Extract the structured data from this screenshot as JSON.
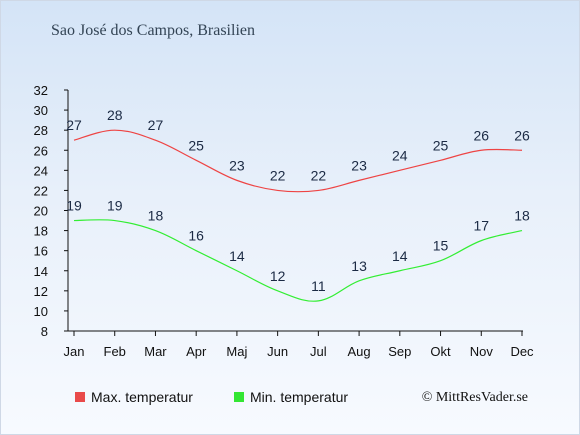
{
  "title": "Sao José dos Campos, Brasilien",
  "credit": "© MittResVader.se",
  "legend": {
    "max_label": "Max. temperatur",
    "min_label": "Min. temperatur"
  },
  "colors": {
    "max": "#ee4444",
    "min": "#33ee33",
    "max_swatch": "#e94a4a",
    "min_swatch": "#33e633"
  },
  "chart_data": {
    "type": "line",
    "categories": [
      "Jan",
      "Feb",
      "Mar",
      "Apr",
      "Maj",
      "Jun",
      "Jul",
      "Aug",
      "Sep",
      "Okt",
      "Nov",
      "Dec"
    ],
    "series": [
      {
        "name": "Max. temperatur",
        "values": [
          27,
          28,
          27,
          25,
          23,
          22,
          22,
          23,
          24,
          25,
          26,
          26
        ]
      },
      {
        "name": "Min. temperatur",
        "values": [
          19,
          19,
          18,
          16,
          14,
          12,
          11,
          13,
          14,
          15,
          17,
          18
        ]
      }
    ],
    "ylim": [
      8,
      32
    ],
    "yticks": [
      8,
      10,
      12,
      14,
      16,
      18,
      20,
      22,
      24,
      26,
      28,
      30,
      32
    ],
    "grid": false,
    "legend_position": "bottom"
  }
}
